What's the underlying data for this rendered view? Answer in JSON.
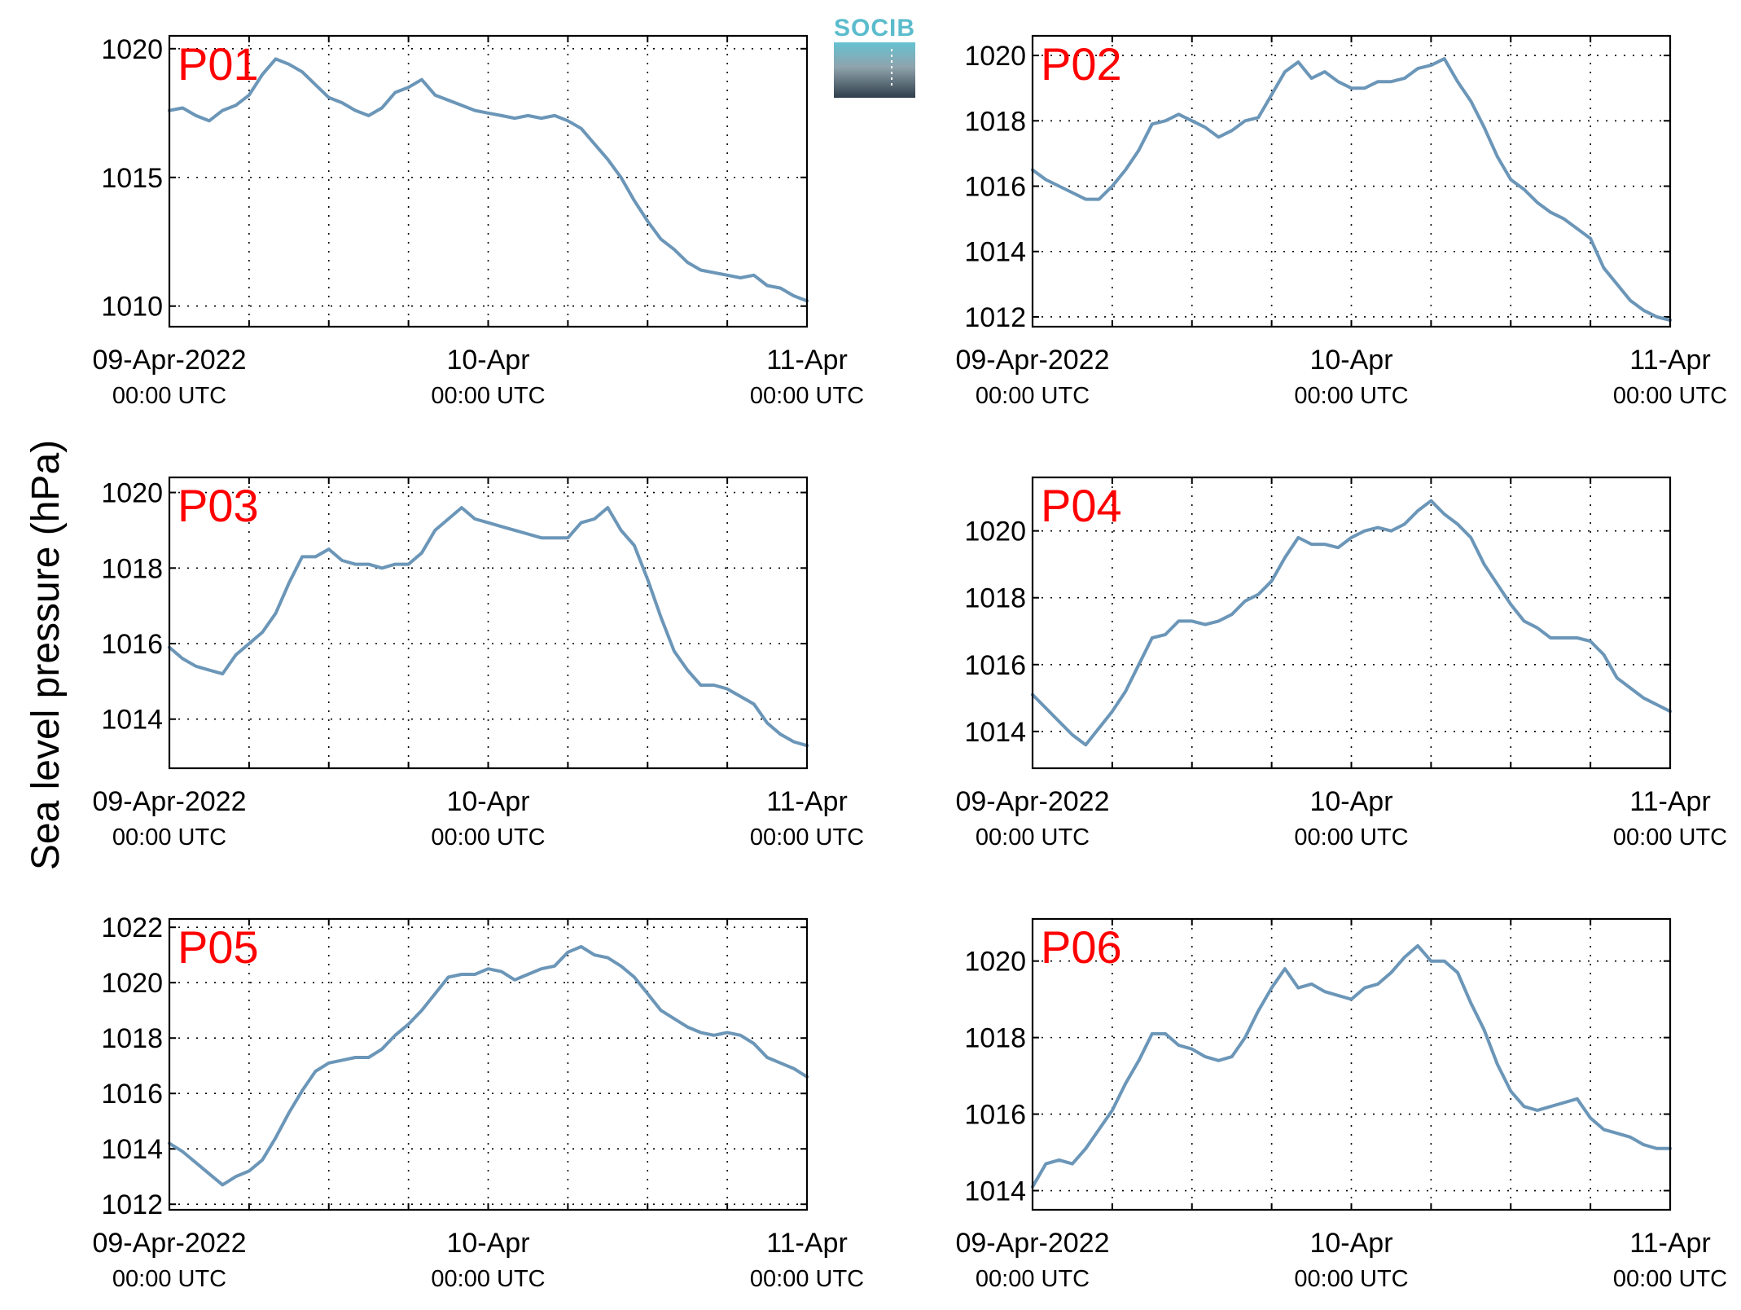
{
  "ylabel": "Sea level pressure (hPa)",
  "logo_text": "SOCIB",
  "colors": {
    "line": "#6b96b8",
    "title": "#ff0000",
    "grid": "#000000",
    "logo_top": "#66c2d1",
    "logo_bottom": "#2f3e4a"
  },
  "x_tick_labels": [
    {
      "date": "09-Apr-2022",
      "time": "00:00 UTC"
    },
    {
      "date": "10-Apr",
      "time": "00:00 UTC"
    },
    {
      "date": "11-Apr",
      "time": "00:00 UTC"
    }
  ],
  "chart_data": [
    {
      "type": "line",
      "title": "P01",
      "x_unit": "hours since 09-Apr-2022 00:00 UTC",
      "xlim": [
        0,
        48
      ],
      "ylim": [
        1009.2,
        1020.5
      ],
      "yticks": [
        1010,
        1015,
        1020
      ],
      "x": [
        0,
        1,
        2,
        3,
        4,
        5,
        6,
        7,
        8,
        9,
        10,
        11,
        12,
        13,
        14,
        15,
        16,
        17,
        18,
        19,
        20,
        21,
        22,
        23,
        24,
        25,
        26,
        27,
        28,
        29,
        30,
        31,
        32,
        33,
        34,
        35,
        36,
        37,
        38,
        39,
        40,
        41,
        42,
        43,
        44,
        45,
        46,
        47,
        48
      ],
      "values": [
        1017.6,
        1017.7,
        1017.4,
        1017.2,
        1017.6,
        1017.8,
        1018.2,
        1019.0,
        1019.6,
        1019.4,
        1019.1,
        1018.6,
        1018.1,
        1017.9,
        1017.6,
        1017.4,
        1017.7,
        1018.3,
        1018.5,
        1018.8,
        1018.2,
        1018.0,
        1017.8,
        1017.6,
        1017.5,
        1017.4,
        1017.3,
        1017.4,
        1017.3,
        1017.4,
        1017.2,
        1016.9,
        1016.3,
        1015.7,
        1015.0,
        1014.1,
        1013.3,
        1012.6,
        1012.2,
        1011.7,
        1011.4,
        1011.3,
        1011.2,
        1011.1,
        1011.2,
        1010.8,
        1010.7,
        1010.4,
        1010.2
      ]
    },
    {
      "type": "line",
      "title": "P02",
      "x_unit": "hours since 09-Apr-2022 00:00 UTC",
      "xlim": [
        0,
        48
      ],
      "ylim": [
        1011.7,
        1020.6
      ],
      "yticks": [
        1012,
        1014,
        1016,
        1018,
        1020
      ],
      "x": [
        0,
        1,
        2,
        3,
        4,
        5,
        6,
        7,
        8,
        9,
        10,
        11,
        12,
        13,
        14,
        15,
        16,
        17,
        18,
        19,
        20,
        21,
        22,
        23,
        24,
        25,
        26,
        27,
        28,
        29,
        30,
        31,
        32,
        33,
        34,
        35,
        36,
        37,
        38,
        39,
        40,
        41,
        42,
        43,
        44,
        45,
        46,
        47,
        48
      ],
      "values": [
        1016.5,
        1016.2,
        1016.0,
        1015.8,
        1015.6,
        1015.6,
        1016.0,
        1016.5,
        1017.1,
        1017.9,
        1018.0,
        1018.2,
        1018.0,
        1017.8,
        1017.5,
        1017.7,
        1018.0,
        1018.1,
        1018.8,
        1019.5,
        1019.8,
        1019.3,
        1019.5,
        1019.2,
        1019.0,
        1019.0,
        1019.2,
        1019.2,
        1019.3,
        1019.6,
        1019.7,
        1019.9,
        1019.2,
        1018.6,
        1017.8,
        1016.9,
        1016.2,
        1015.9,
        1015.5,
        1015.2,
        1015.0,
        1014.7,
        1014.4,
        1013.5,
        1013.0,
        1012.5,
        1012.2,
        1012.0,
        1011.9
      ]
    },
    {
      "type": "line",
      "title": "P03",
      "x_unit": "hours since 09-Apr-2022 00:00 UTC",
      "xlim": [
        0,
        48
      ],
      "ylim": [
        1012.7,
        1020.4
      ],
      "yticks": [
        1014,
        1016,
        1018,
        1020
      ],
      "x": [
        0,
        1,
        2,
        3,
        4,
        5,
        6,
        7,
        8,
        9,
        10,
        11,
        12,
        13,
        14,
        15,
        16,
        17,
        18,
        19,
        20,
        21,
        22,
        23,
        24,
        25,
        26,
        27,
        28,
        29,
        30,
        31,
        32,
        33,
        34,
        35,
        36,
        37,
        38,
        39,
        40,
        41,
        42,
        43,
        44,
        45,
        46,
        47,
        48
      ],
      "values": [
        1015.9,
        1015.6,
        1015.4,
        1015.3,
        1015.2,
        1015.7,
        1016.0,
        1016.3,
        1016.8,
        1017.6,
        1018.3,
        1018.3,
        1018.5,
        1018.2,
        1018.1,
        1018.1,
        1018.0,
        1018.1,
        1018.1,
        1018.4,
        1019.0,
        1019.3,
        1019.6,
        1019.3,
        1019.2,
        1019.1,
        1019.0,
        1018.9,
        1018.8,
        1018.8,
        1018.8,
        1019.2,
        1019.3,
        1019.6,
        1019.0,
        1018.6,
        1017.7,
        1016.7,
        1015.8,
        1015.3,
        1014.9,
        1014.9,
        1014.8,
        1014.6,
        1014.4,
        1013.9,
        1013.6,
        1013.4,
        1013.3
      ]
    },
    {
      "type": "line",
      "title": "P04",
      "x_unit": "hours since 09-Apr-2022 00:00 UTC",
      "xlim": [
        0,
        48
      ],
      "ylim": [
        1012.9,
        1021.6
      ],
      "yticks": [
        1014,
        1016,
        1018,
        1020
      ],
      "x": [
        0,
        1,
        2,
        3,
        4,
        5,
        6,
        7,
        8,
        9,
        10,
        11,
        12,
        13,
        14,
        15,
        16,
        17,
        18,
        19,
        20,
        21,
        22,
        23,
        24,
        25,
        26,
        27,
        28,
        29,
        30,
        31,
        32,
        33,
        34,
        35,
        36,
        37,
        38,
        39,
        40,
        41,
        42,
        43,
        44,
        45,
        46,
        47,
        48
      ],
      "values": [
        1015.1,
        1014.7,
        1014.3,
        1013.9,
        1013.6,
        1014.1,
        1014.6,
        1015.2,
        1016.0,
        1016.8,
        1016.9,
        1017.3,
        1017.3,
        1017.2,
        1017.3,
        1017.5,
        1017.9,
        1018.1,
        1018.5,
        1019.2,
        1019.8,
        1019.6,
        1019.6,
        1019.5,
        1019.8,
        1020.0,
        1020.1,
        1020.0,
        1020.2,
        1020.6,
        1020.9,
        1020.5,
        1020.2,
        1019.8,
        1019.0,
        1018.4,
        1017.8,
        1017.3,
        1017.1,
        1016.8,
        1016.8,
        1016.8,
        1016.7,
        1016.3,
        1015.6,
        1015.3,
        1015.0,
        1014.8,
        1014.6
      ]
    },
    {
      "type": "line",
      "title": "P05",
      "x_unit": "hours since 09-Apr-2022 00:00 UTC",
      "xlim": [
        0,
        48
      ],
      "ylim": [
        1011.8,
        1022.3
      ],
      "yticks": [
        1012,
        1014,
        1016,
        1018,
        1020,
        1022
      ],
      "x": [
        0,
        1,
        2,
        3,
        4,
        5,
        6,
        7,
        8,
        9,
        10,
        11,
        12,
        13,
        14,
        15,
        16,
        17,
        18,
        19,
        20,
        21,
        22,
        23,
        24,
        25,
        26,
        27,
        28,
        29,
        30,
        31,
        32,
        33,
        34,
        35,
        36,
        37,
        38,
        39,
        40,
        41,
        42,
        43,
        44,
        45,
        46,
        47,
        48
      ],
      "values": [
        1014.2,
        1013.9,
        1013.5,
        1013.1,
        1012.7,
        1013.0,
        1013.2,
        1013.6,
        1014.4,
        1015.3,
        1016.1,
        1016.8,
        1017.1,
        1017.2,
        1017.3,
        1017.3,
        1017.6,
        1018.1,
        1018.5,
        1019.0,
        1019.6,
        1020.2,
        1020.3,
        1020.3,
        1020.5,
        1020.4,
        1020.1,
        1020.3,
        1020.5,
        1020.6,
        1021.1,
        1021.3,
        1021.0,
        1020.9,
        1020.6,
        1020.2,
        1019.6,
        1019.0,
        1018.7,
        1018.4,
        1018.2,
        1018.1,
        1018.2,
        1018.1,
        1017.8,
        1017.3,
        1017.1,
        1016.9,
        1016.6
      ]
    },
    {
      "type": "line",
      "title": "P06",
      "x_unit": "hours since 09-Apr-2022 00:00 UTC",
      "xlim": [
        0,
        48
      ],
      "ylim": [
        1013.5,
        1021.1
      ],
      "yticks": [
        1014,
        1016,
        1018,
        1020
      ],
      "x": [
        0,
        1,
        2,
        3,
        4,
        5,
        6,
        7,
        8,
        9,
        10,
        11,
        12,
        13,
        14,
        15,
        16,
        17,
        18,
        19,
        20,
        21,
        22,
        23,
        24,
        25,
        26,
        27,
        28,
        29,
        30,
        31,
        32,
        33,
        34,
        35,
        36,
        37,
        38,
        39,
        40,
        41,
        42,
        43,
        44,
        45,
        46,
        47,
        48
      ],
      "values": [
        1014.1,
        1014.7,
        1014.8,
        1014.7,
        1015.1,
        1015.6,
        1016.1,
        1016.8,
        1017.4,
        1018.1,
        1018.1,
        1017.8,
        1017.7,
        1017.5,
        1017.4,
        1017.5,
        1018.0,
        1018.7,
        1019.3,
        1019.8,
        1019.3,
        1019.4,
        1019.2,
        1019.1,
        1019.0,
        1019.3,
        1019.4,
        1019.7,
        1020.1,
        1020.4,
        1020.0,
        1020.0,
        1019.7,
        1018.9,
        1018.2,
        1017.3,
        1016.6,
        1016.2,
        1016.1,
        1016.2,
        1016.3,
        1016.4,
        1015.9,
        1015.6,
        1015.5,
        1015.4,
        1015.2,
        1015.1,
        1015.1
      ]
    }
  ]
}
